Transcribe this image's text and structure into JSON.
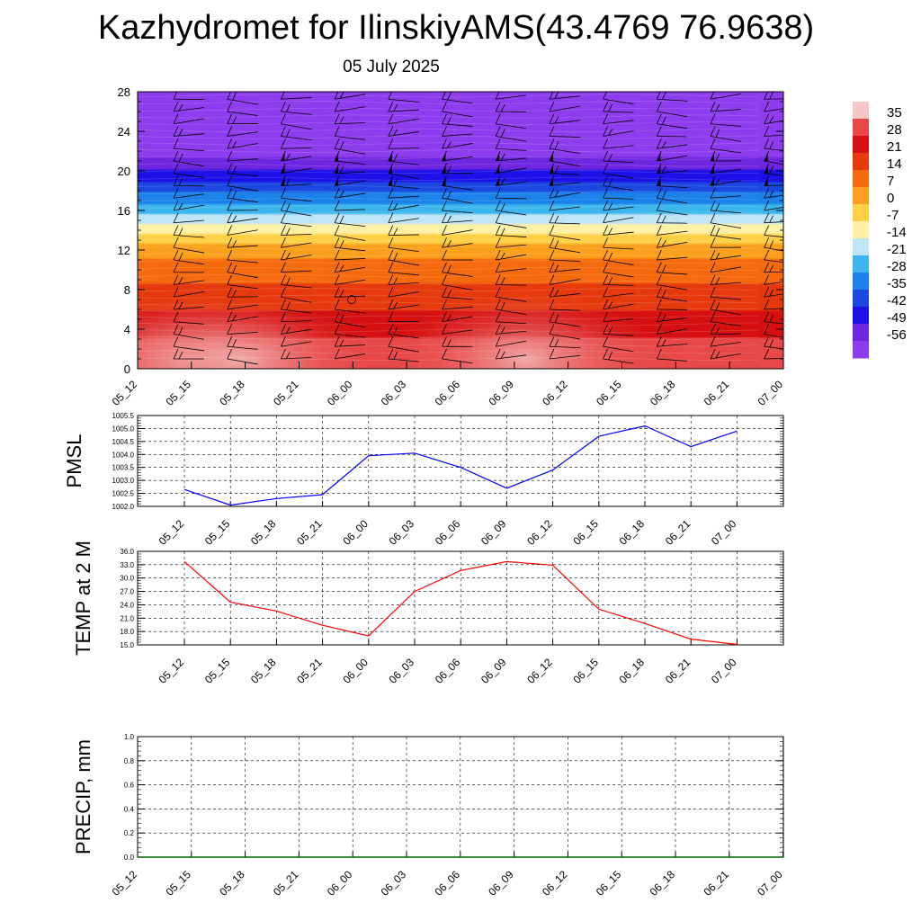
{
  "title": "Kazhydromet for IlinskiyAMS(43.4769 76.9638)",
  "subtitle": "05 July 2025",
  "chart_data": [
    {
      "type": "heatmap",
      "ylim": [
        0,
        28
      ],
      "yticks": [
        0,
        4,
        8,
        12,
        16,
        20,
        24,
        28
      ],
      "x_labels": [
        "05_12",
        "05_15",
        "05_18",
        "05_21",
        "06_00",
        "06_03",
        "06_06",
        "06_09",
        "06_12",
        "06_15",
        "06_18",
        "06_21",
        "07_00"
      ],
      "colorbar": {
        "labels": [
          "35",
          "28",
          "21",
          "14",
          "7",
          "0",
          "-7",
          "-14",
          "-21",
          "-28",
          "-35",
          "-42",
          "-49",
          "-56"
        ],
        "colors": [
          "#f4c6c6",
          "#e84848",
          "#d61010",
          "#e63a0e",
          "#f56a0c",
          "#fba01c",
          "#fed046",
          "#fff0a6",
          "#bfe6f6",
          "#3db6ee",
          "#1a82ea",
          "#1a48e0",
          "#1d10e8",
          "#6e26e0",
          "#8d3cee"
        ]
      },
      "temperature_by_level": {
        "levels": [
          0,
          2,
          4,
          6,
          8,
          10,
          12,
          13,
          14,
          16,
          18,
          20,
          21,
          22,
          24,
          28
        ],
        "values": [
          30,
          27,
          22,
          17,
          12,
          6,
          1,
          -6,
          -14,
          -28,
          -40,
          -52,
          -58,
          -63,
          -65,
          -65
        ]
      },
      "wind_barbs": true
    },
    {
      "type": "line",
      "ylabel": "PMSL",
      "ylim": [
        1002.0,
        1005.5
      ],
      "yticks": [
        "1002.0",
        "1002.5",
        "1003.0",
        "1003.5",
        "1004.0",
        "1004.5",
        "1005.0",
        "1005.5"
      ],
      "x": [
        "05_12",
        "05_15",
        "05_18",
        "05_21",
        "06_00",
        "06_03",
        "06_06",
        "06_09",
        "06_12",
        "06_15",
        "06_18",
        "06_21",
        "07_00"
      ],
      "values": [
        1002.65,
        1002.05,
        1002.3,
        1002.45,
        1003.95,
        1004.05,
        1003.5,
        1002.7,
        1003.4,
        1004.7,
        1005.1,
        1004.3,
        1004.9
      ],
      "color": "#0000ff"
    },
    {
      "type": "line",
      "ylabel": "TEMP at 2 M",
      "ylim": [
        15.0,
        36.0
      ],
      "yticks": [
        "15.0",
        "18.0",
        "21.0",
        "24.0",
        "27.0",
        "30.0",
        "33.0",
        "36.0"
      ],
      "x": [
        "05_12",
        "05_15",
        "05_18",
        "05_21",
        "06_00",
        "06_03",
        "06_06",
        "06_09",
        "06_12",
        "06_15",
        "06_18",
        "06_21",
        "07_00"
      ],
      "values": [
        33.7,
        24.6,
        22.6,
        19.4,
        17.0,
        27.0,
        31.7,
        33.7,
        32.9,
        23.0,
        19.8,
        16.3,
        15.1
      ],
      "color": "#ff0000"
    },
    {
      "type": "line",
      "ylabel": "PRECIP, mm",
      "ylim": [
        0.0,
        1.0
      ],
      "yticks": [
        "0.0",
        "0.2",
        "0.4",
        "0.6",
        "0.8",
        "1.0"
      ],
      "x_labels": [
        "05_12",
        "05_15",
        "05_18",
        "05_21",
        "06_00",
        "06_03",
        "06_06",
        "06_09",
        "06_12",
        "06_15",
        "06_18",
        "06_21",
        "07_00"
      ],
      "values": [
        0,
        0,
        0,
        0,
        0,
        0,
        0,
        0,
        0,
        0,
        0,
        0,
        0
      ],
      "color": "#006400"
    }
  ]
}
